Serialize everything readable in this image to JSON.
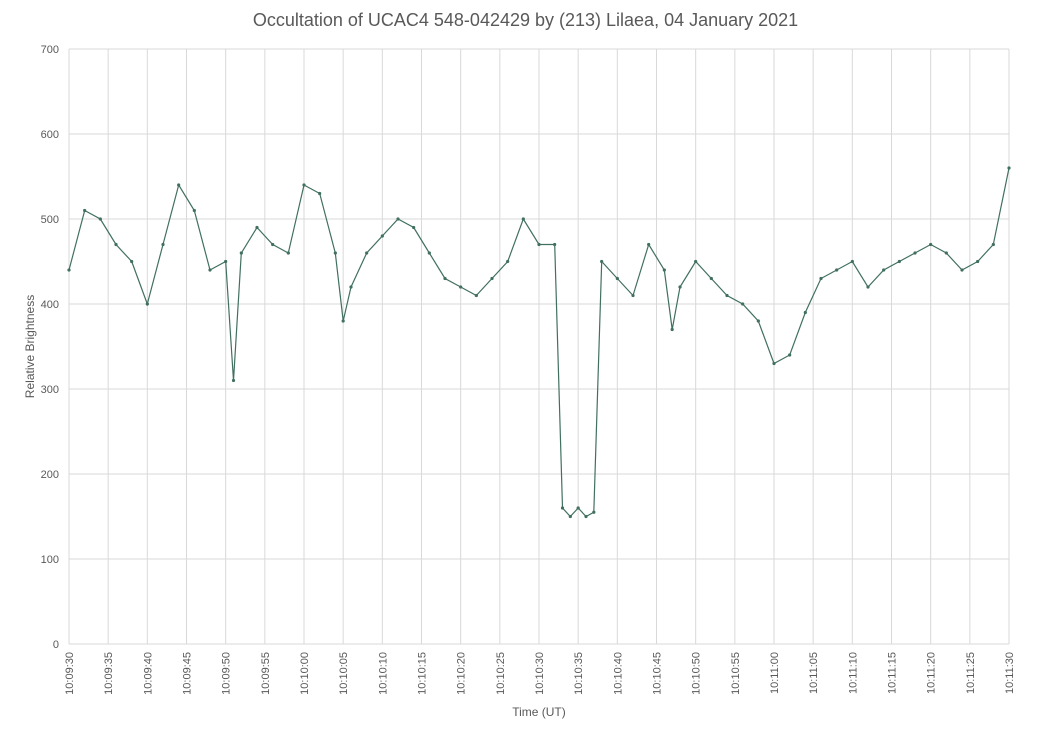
{
  "chart_data": {
    "type": "line",
    "title": "Occultation of UCAC4 548-042429 by (213) Lilaea, 04 January 2021",
    "xlabel": "Time (UT)",
    "ylabel": "Relative Brightness",
    "ylim": [
      0,
      700
    ],
    "yticks": [
      "0",
      "100",
      "200",
      "300",
      "400",
      "500",
      "600",
      "700"
    ],
    "xlim": [
      "10:09:30",
      "10:11:30"
    ],
    "xticks": [
      "10:09:30",
      "10:09:35",
      "10:09:40",
      "10:09:45",
      "10:09:50",
      "10:09:55",
      "10:10:00",
      "10:10:05",
      "10:10:10",
      "10:10:15",
      "10:10:20",
      "10:10:25",
      "10:10:30",
      "10:10:35",
      "10:10:40",
      "10:10:45",
      "10:10:50",
      "10:10:55",
      "10:11:00",
      "10:11:05",
      "10:11:10",
      "10:11:15",
      "10:11:20",
      "10:11:25",
      "10:11:30"
    ],
    "grid": true,
    "legend": "none",
    "series_color": "#41705f",
    "series": [
      {
        "x": [
          "10:09:30",
          "10:09:32",
          "10:09:34",
          "10:09:36",
          "10:09:38",
          "10:09:40",
          "10:09:42",
          "10:09:44",
          "10:09:46",
          "10:09:48",
          "10:09:50",
          "10:09:51",
          "10:09:52",
          "10:09:54",
          "10:09:56",
          "10:09:58",
          "10:10:00",
          "10:10:02",
          "10:10:04",
          "10:10:05",
          "10:10:06",
          "10:10:08",
          "10:10:10",
          "10:10:12",
          "10:10:14",
          "10:10:16",
          "10:10:18",
          "10:10:20",
          "10:10:22",
          "10:10:24",
          "10:10:26",
          "10:10:28",
          "10:10:30",
          "10:10:32",
          "10:10:33",
          "10:10:34",
          "10:10:35",
          "10:10:36",
          "10:10:37",
          "10:10:38",
          "10:10:40",
          "10:10:42",
          "10:10:44",
          "10:10:46",
          "10:10:47",
          "10:10:48",
          "10:10:50",
          "10:10:52",
          "10:10:54",
          "10:10:56",
          "10:10:58",
          "10:11:00",
          "10:11:02",
          "10:11:04",
          "10:11:06",
          "10:11:08",
          "10:11:10",
          "10:11:12",
          "10:11:14",
          "10:11:16",
          "10:11:18",
          "10:11:20",
          "10:11:22",
          "10:11:24",
          "10:11:26",
          "10:11:28",
          "10:11:30"
        ],
        "values": [
          440,
          510,
          500,
          470,
          450,
          400,
          470,
          540,
          510,
          440,
          450,
          310,
          460,
          490,
          470,
          460,
          540,
          530,
          460,
          380,
          420,
          460,
          480,
          500,
          490,
          460,
          430,
          420,
          410,
          430,
          450,
          500,
          470,
          470,
          160,
          150,
          160,
          150,
          155,
          450,
          430,
          410,
          470,
          440,
          370,
          420,
          450,
          430,
          410,
          400,
          380,
          330,
          340,
          390,
          430,
          440,
          450,
          420,
          440,
          450,
          460,
          470,
          460,
          440,
          450,
          470,
          560
        ]
      }
    ]
  }
}
